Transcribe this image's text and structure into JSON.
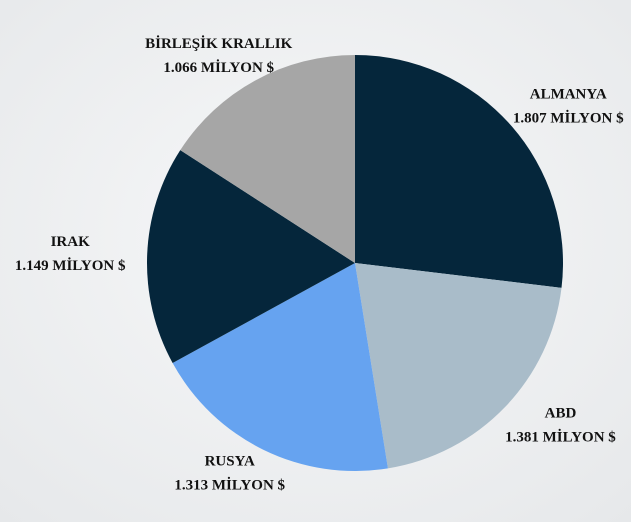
{
  "chart_data": {
    "type": "pie",
    "categories": [
      "ALMANYA",
      "ABD",
      "RUSYA",
      "IRAK",
      "BİRLEŞİK KRALLIK"
    ],
    "values": [
      1807,
      1381,
      1313,
      1149,
      1066
    ],
    "value_labels": [
      "1.807 MİLYON $",
      "1.381 MİLYON $",
      "1.313 MİLYON $",
      "1.149 MİLYON $",
      "1.066 MİLYON $"
    ],
    "colors": [
      "#05263b",
      "#a9bcc9",
      "#66a3f0",
      "#05263b",
      "#a6a6a6"
    ]
  }
}
